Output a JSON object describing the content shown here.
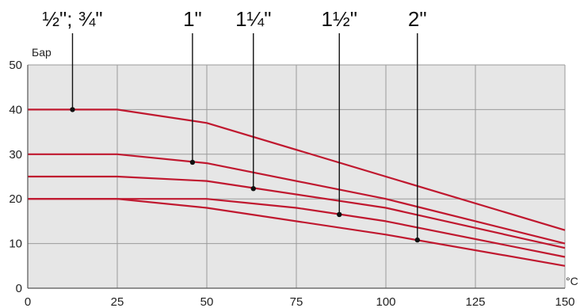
{
  "chart_data": {
    "type": "line",
    "title": "",
    "xlabel": "°C",
    "ylabel": "Бар",
    "xlim": [
      0,
      150
    ],
    "ylim": [
      0,
      50
    ],
    "x_ticks": [
      "0",
      "25",
      "50",
      "75",
      "100",
      "125",
      "150"
    ],
    "y_ticks": [
      "0",
      "10",
      "20",
      "30",
      "40",
      "50"
    ],
    "grid": true,
    "line_color": "#c0182f",
    "plot_background": "#e6e6e6",
    "series": [
      {
        "name": "½\"; ¾\"",
        "x": [
          0,
          25,
          50,
          150
        ],
        "y": [
          40,
          40,
          37,
          13
        ]
      },
      {
        "name": "1\"",
        "x": [
          0,
          25,
          50,
          100,
          150
        ],
        "y": [
          30,
          30,
          28,
          20,
          10
        ]
      },
      {
        "name": "1¼\"",
        "x": [
          0,
          25,
          50,
          100,
          150
        ],
        "y": [
          25,
          25,
          24,
          18,
          9
        ]
      },
      {
        "name": "1½\"",
        "x": [
          0,
          25,
          50,
          75,
          100,
          150
        ],
        "y": [
          20,
          20,
          20,
          18,
          15,
          7
        ]
      },
      {
        "name": "2\"",
        "x": [
          0,
          25,
          50,
          100,
          150
        ],
        "y": [
          20,
          20,
          18,
          12,
          5
        ]
      }
    ],
    "annotations": [
      {
        "label": "½\"; ¾\"",
        "x": 12.5,
        "y": 40
      },
      {
        "label": "1\"",
        "x": 46,
        "y": 28.2
      },
      {
        "label": "1¼\"",
        "x": 63,
        "y": 22.3
      },
      {
        "label": "1½\"",
        "x": 87,
        "y": 16.5
      },
      {
        "label": "2\"",
        "x": 108.8,
        "y": 10.8
      }
    ]
  }
}
